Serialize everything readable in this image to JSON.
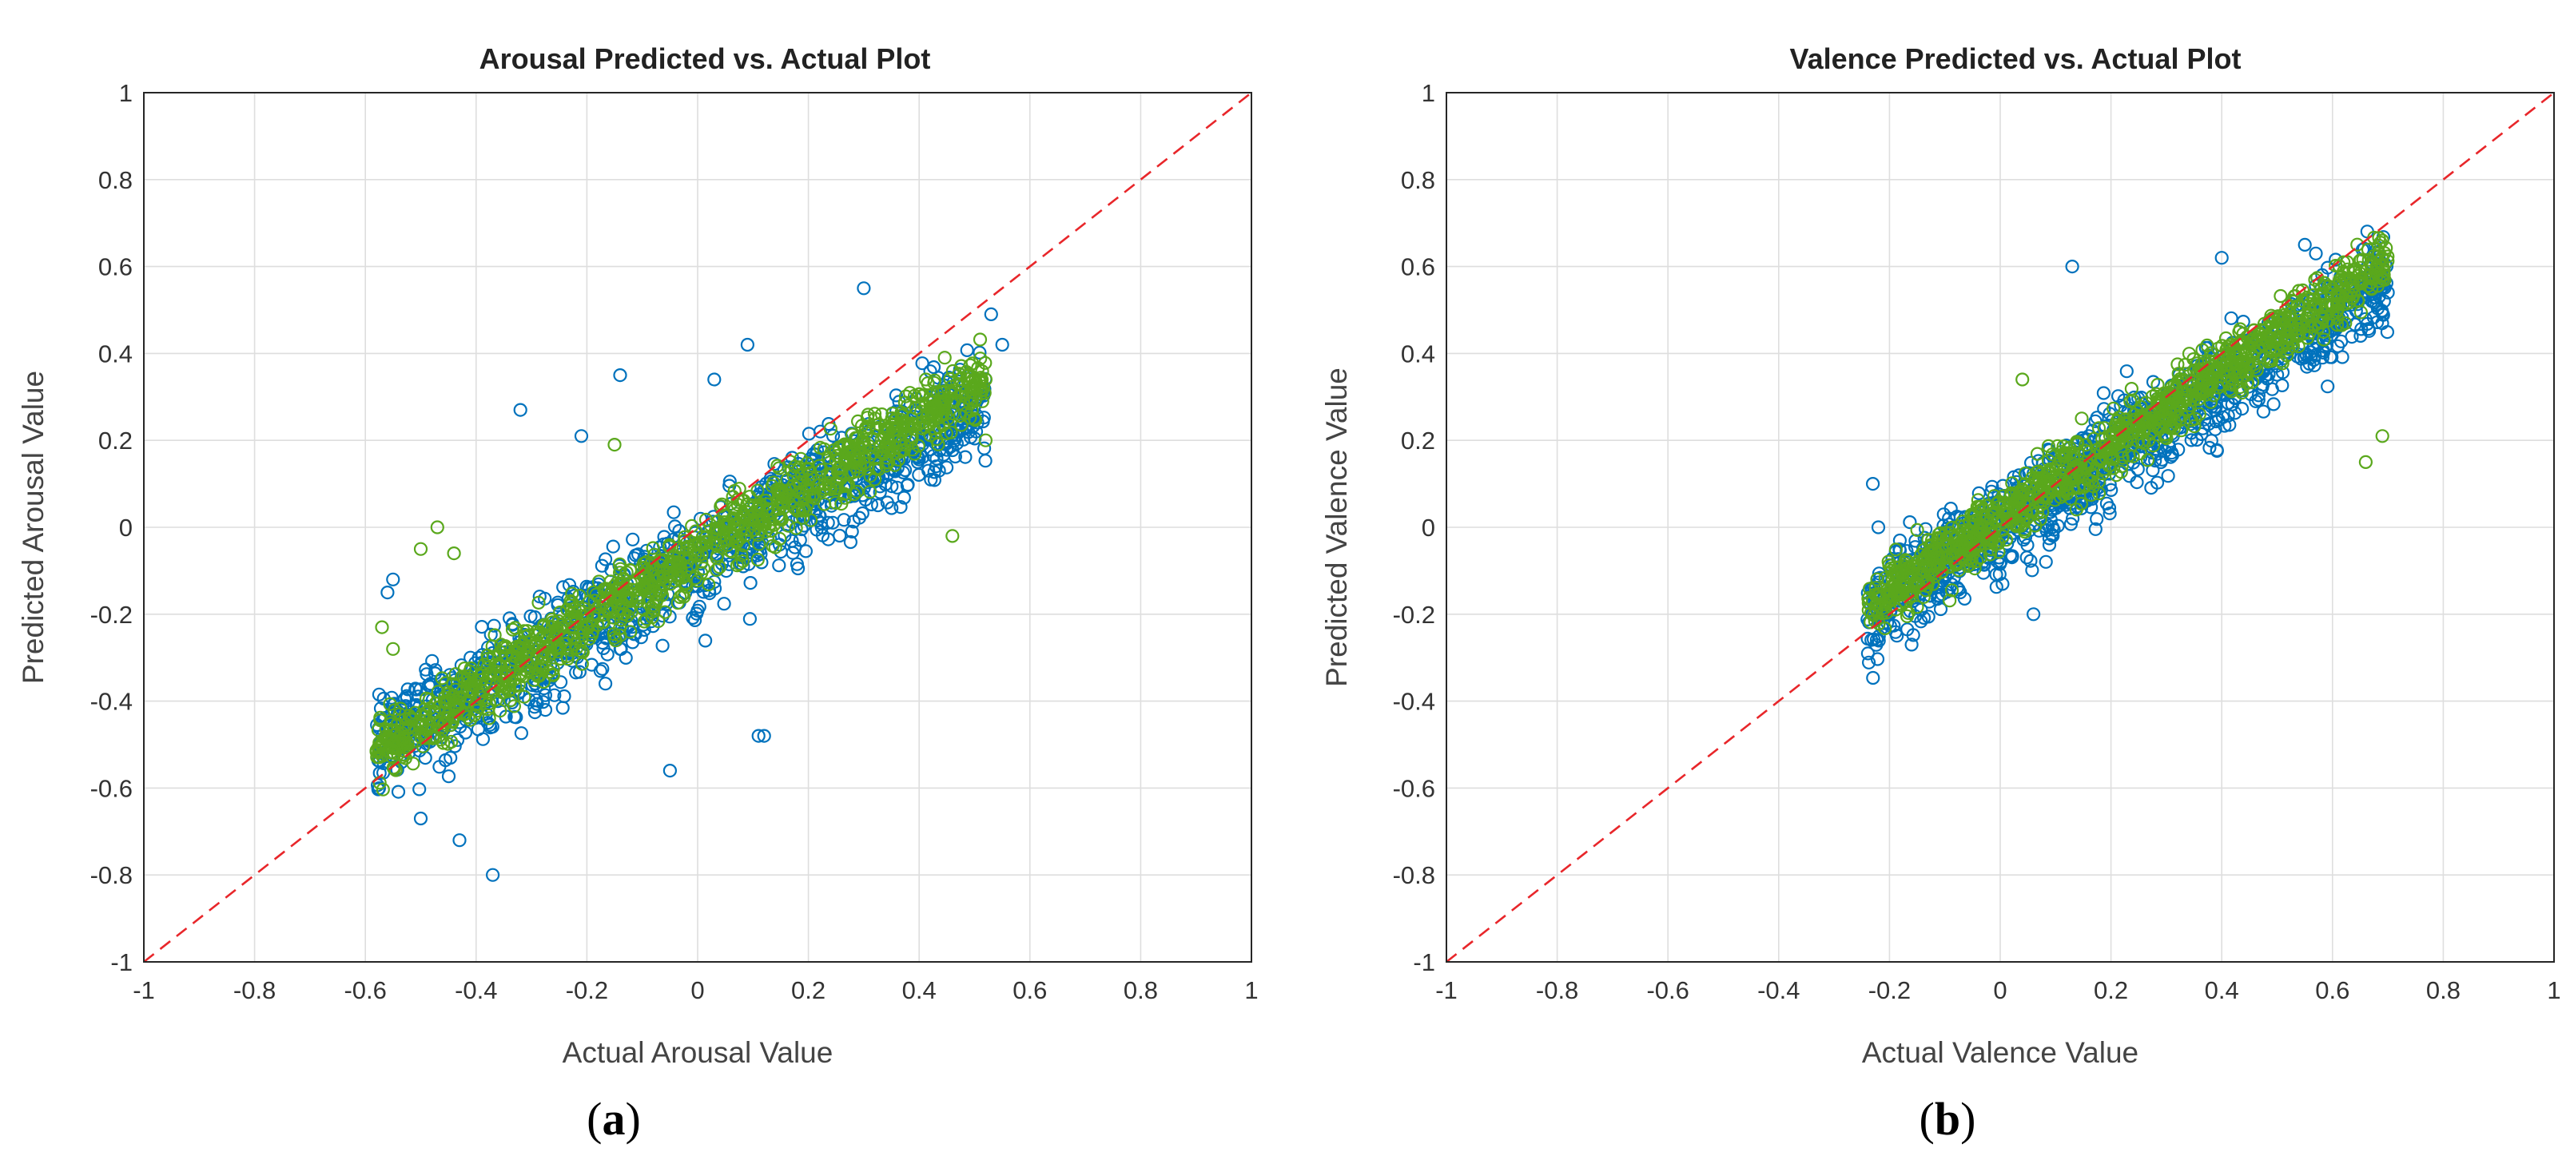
{
  "chart_data": [
    {
      "type": "scatter",
      "panel_label": "a",
      "title": "Arousal Predicted vs. Actual Plot",
      "xlabel": "Actual Arousal Value",
      "ylabel": "Predicted Arousal Value",
      "xlim": [
        -1,
        1
      ],
      "ylim": [
        -1,
        1
      ],
      "xticks": [
        -1,
        -0.8,
        -0.6,
        -0.4,
        -0.2,
        0,
        0.2,
        0.4,
        0.6,
        0.8,
        1
      ],
      "yticks": [
        -1,
        -0.8,
        -0.6,
        -0.4,
        -0.2,
        0,
        0.2,
        0.4,
        0.6,
        0.8,
        1
      ],
      "grid": true,
      "reference_line": {
        "style": "dashed",
        "color": "#e8262a",
        "from": [
          -1,
          -1
        ],
        "to": [
          1,
          1
        ]
      },
      "series": [
        {
          "name": "blue",
          "color": "#0072bd",
          "cloud": {
            "x_range": [
              -0.58,
              0.52
            ],
            "slope": 0.72,
            "intercept": -0.08,
            "spread": 0.16
          },
          "outliers": [
            [
              -0.37,
              -0.8
            ],
            [
              -0.55,
              -0.12
            ],
            [
              -0.56,
              -0.15
            ],
            [
              0.3,
              0.55
            ],
            [
              0.11,
              -0.48
            ],
            [
              0.12,
              -0.48
            ],
            [
              -0.05,
              -0.56
            ],
            [
              -0.32,
              0.27
            ],
            [
              -0.14,
              0.35
            ],
            [
              0.03,
              0.34
            ],
            [
              -0.43,
              -0.72
            ],
            [
              -0.5,
              -0.67
            ],
            [
              0.55,
              0.42
            ],
            [
              0.53,
              0.49
            ],
            [
              0.09,
              0.42
            ],
            [
              -0.21,
              0.21
            ]
          ]
        },
        {
          "name": "green",
          "color": "#5aa81c",
          "cloud": {
            "x_range": [
              -0.58,
              0.52
            ],
            "slope": 0.78,
            "intercept": -0.06,
            "spread": 0.1
          },
          "outliers": [
            [
              -0.57,
              -0.23
            ],
            [
              -0.55,
              -0.28
            ],
            [
              -0.47,
              0.0
            ],
            [
              -0.5,
              -0.05
            ],
            [
              0.52,
              0.34
            ],
            [
              0.52,
              0.2
            ],
            [
              0.5,
              0.25
            ],
            [
              0.46,
              -0.02
            ],
            [
              -0.15,
              0.19
            ],
            [
              -0.44,
              -0.06
            ]
          ]
        }
      ]
    },
    {
      "type": "scatter",
      "panel_label": "b",
      "title": "Valence Predicted vs. Actual Plot",
      "xlabel": "Actual Valence Value",
      "ylabel": "Predicted Valence Value",
      "xlim": [
        -1,
        1
      ],
      "ylim": [
        -1,
        1
      ],
      "xticks": [
        -1,
        -0.8,
        -0.6,
        -0.4,
        -0.2,
        0,
        0.2,
        0.4,
        0.6,
        0.8,
        1
      ],
      "yticks": [
        -1,
        -0.8,
        -0.6,
        -0.4,
        -0.2,
        0,
        0.2,
        0.4,
        0.6,
        0.8,
        1
      ],
      "grid": true,
      "reference_line": {
        "style": "dashed",
        "color": "#e8262a",
        "from": [
          -1,
          -1
        ],
        "to": [
          1,
          1
        ]
      },
      "series": [
        {
          "name": "blue",
          "color": "#0072bd",
          "cloud": {
            "x_range": [
              -0.24,
              0.7
            ],
            "slope": 0.82,
            "intercept": 0.0,
            "spread": 0.14
          },
          "outliers": [
            [
              0.13,
              0.6
            ],
            [
              -0.23,
              0.1
            ],
            [
              -0.22,
              0.0
            ],
            [
              0.55,
              0.65
            ],
            [
              0.57,
              0.63
            ],
            [
              0.4,
              0.62
            ],
            [
              0.7,
              0.54
            ],
            [
              -0.16,
              -0.27
            ],
            [
              0.06,
              -0.2
            ]
          ]
        },
        {
          "name": "green",
          "color": "#5aa81c",
          "cloud": {
            "x_range": [
              -0.24,
              0.7
            ],
            "slope": 0.85,
            "intercept": 0.02,
            "spread": 0.09
          },
          "outliers": [
            [
              0.69,
              0.66
            ],
            [
              0.68,
              0.6
            ],
            [
              0.69,
              0.21
            ],
            [
              0.66,
              0.15
            ],
            [
              -0.23,
              -0.17
            ],
            [
              0.6,
              0.55
            ],
            [
              0.04,
              0.34
            ],
            [
              0.62,
              0.61
            ]
          ]
        }
      ]
    }
  ]
}
